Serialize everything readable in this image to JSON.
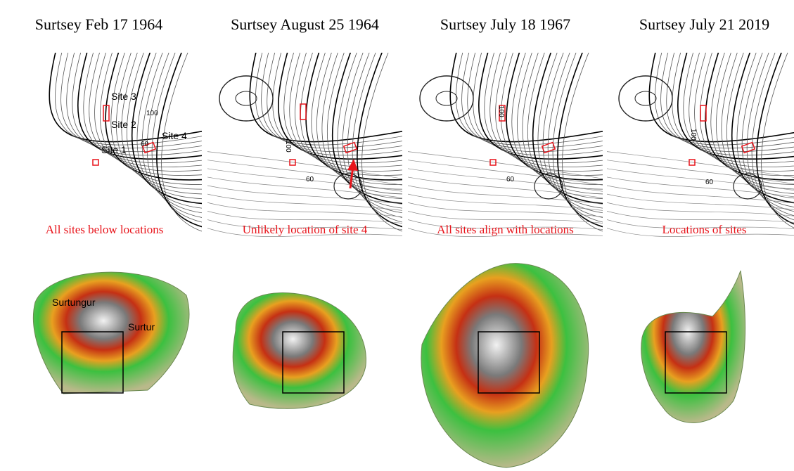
{
  "panels": [
    {
      "title": "Surtsey Feb 17 1964",
      "caption": "All sites below locations",
      "labels": [
        "Site 3",
        "Site 2",
        "Site 4",
        "Site 1",
        "100",
        "60"
      ],
      "relief_labels": [
        "Surtungur",
        "Surtur"
      ]
    },
    {
      "title": "Surtsey August 25 1964",
      "caption": "Unlikely location of site 4",
      "labels": [
        "100",
        "60"
      ]
    },
    {
      "title": "Surtsey July 18 1967",
      "caption": "All sites align with locations",
      "labels": [
        "100",
        "60"
      ]
    },
    {
      "title": "Surtsey July 21 2019",
      "caption": "Locations of sites",
      "labels": [
        "100",
        "60"
      ]
    }
  ]
}
